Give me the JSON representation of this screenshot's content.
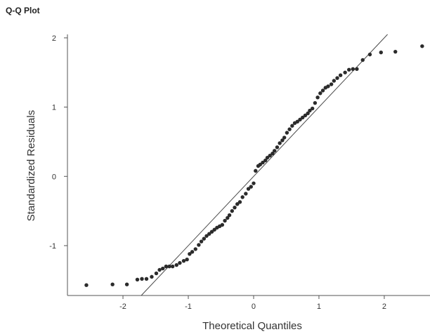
{
  "chart_data": {
    "type": "scatter",
    "title": "Q-Q Plot",
    "xlabel": "Theoretical Quantiles",
    "ylabel": "Standardized Residuals",
    "xlim": [
      -2.85,
      2.7
    ],
    "ylim": [
      -1.72,
      2.05
    ],
    "xticks": [
      -2,
      -1,
      0,
      1,
      2
    ],
    "yticks": [
      -1,
      0,
      1,
      2
    ],
    "grid": false,
    "reference_line": {
      "intercept": 0.0,
      "slope": 1.0
    },
    "point_color": "#2b2b2b",
    "line_color": "#4a4a4a",
    "points": [
      [
        -2.56,
        -1.57
      ],
      [
        -2.16,
        -1.56
      ],
      [
        -1.94,
        -1.56
      ],
      [
        -1.78,
        -1.49
      ],
      [
        -1.71,
        -1.48
      ],
      [
        -1.64,
        -1.48
      ],
      [
        -1.56,
        -1.45
      ],
      [
        -1.49,
        -1.4
      ],
      [
        -1.44,
        -1.35
      ],
      [
        -1.39,
        -1.33
      ],
      [
        -1.34,
        -1.3
      ],
      [
        -1.29,
        -1.3
      ],
      [
        -1.24,
        -1.3
      ],
      [
        -1.18,
        -1.28
      ],
      [
        -1.13,
        -1.25
      ],
      [
        -1.07,
        -1.22
      ],
      [
        -1.02,
        -1.2
      ],
      [
        -0.98,
        -1.12
      ],
      [
        -0.94,
        -1.09
      ],
      [
        -0.89,
        -1.05
      ],
      [
        -0.84,
        -0.99
      ],
      [
        -0.8,
        -0.94
      ],
      [
        -0.76,
        -0.9
      ],
      [
        -0.72,
        -0.86
      ],
      [
        -0.68,
        -0.83
      ],
      [
        -0.64,
        -0.8
      ],
      [
        -0.6,
        -0.77
      ],
      [
        -0.56,
        -0.74
      ],
      [
        -0.52,
        -0.72
      ],
      [
        -0.48,
        -0.7
      ],
      [
        -0.44,
        -0.64
      ],
      [
        -0.4,
        -0.6
      ],
      [
        -0.37,
        -0.56
      ],
      [
        -0.33,
        -0.5
      ],
      [
        -0.29,
        -0.45
      ],
      [
        -0.25,
        -0.4
      ],
      [
        -0.21,
        -0.37
      ],
      [
        -0.17,
        -0.3
      ],
      [
        -0.12,
        -0.25
      ],
      [
        -0.08,
        -0.18
      ],
      [
        -0.04,
        -0.15
      ],
      [
        0.0,
        -0.1
      ],
      [
        0.03,
        0.08
      ],
      [
        0.07,
        0.15
      ],
      [
        0.1,
        0.17
      ],
      [
        0.14,
        0.2
      ],
      [
        0.18,
        0.23
      ],
      [
        0.21,
        0.27
      ],
      [
        0.25,
        0.3
      ],
      [
        0.29,
        0.33
      ],
      [
        0.32,
        0.37
      ],
      [
        0.36,
        0.42
      ],
      [
        0.4,
        0.48
      ],
      [
        0.44,
        0.52
      ],
      [
        0.47,
        0.56
      ],
      [
        0.51,
        0.63
      ],
      [
        0.55,
        0.68
      ],
      [
        0.59,
        0.73
      ],
      [
        0.63,
        0.77
      ],
      [
        0.67,
        0.79
      ],
      [
        0.71,
        0.82
      ],
      [
        0.75,
        0.85
      ],
      [
        0.79,
        0.88
      ],
      [
        0.83,
        0.91
      ],
      [
        0.86,
        0.95
      ],
      [
        0.9,
        0.98
      ],
      [
        0.94,
        1.06
      ],
      [
        0.98,
        1.14
      ],
      [
        1.02,
        1.2
      ],
      [
        1.06,
        1.24
      ],
      [
        1.1,
        1.28
      ],
      [
        1.14,
        1.3
      ],
      [
        1.19,
        1.33
      ],
      [
        1.23,
        1.38
      ],
      [
        1.28,
        1.42
      ],
      [
        1.33,
        1.46
      ],
      [
        1.4,
        1.5
      ],
      [
        1.46,
        1.54
      ],
      [
        1.52,
        1.55
      ],
      [
        1.58,
        1.55
      ],
      [
        1.67,
        1.68
      ],
      [
        1.78,
        1.76
      ],
      [
        1.95,
        1.79
      ],
      [
        2.17,
        1.8
      ],
      [
        2.58,
        1.88
      ]
    ]
  }
}
